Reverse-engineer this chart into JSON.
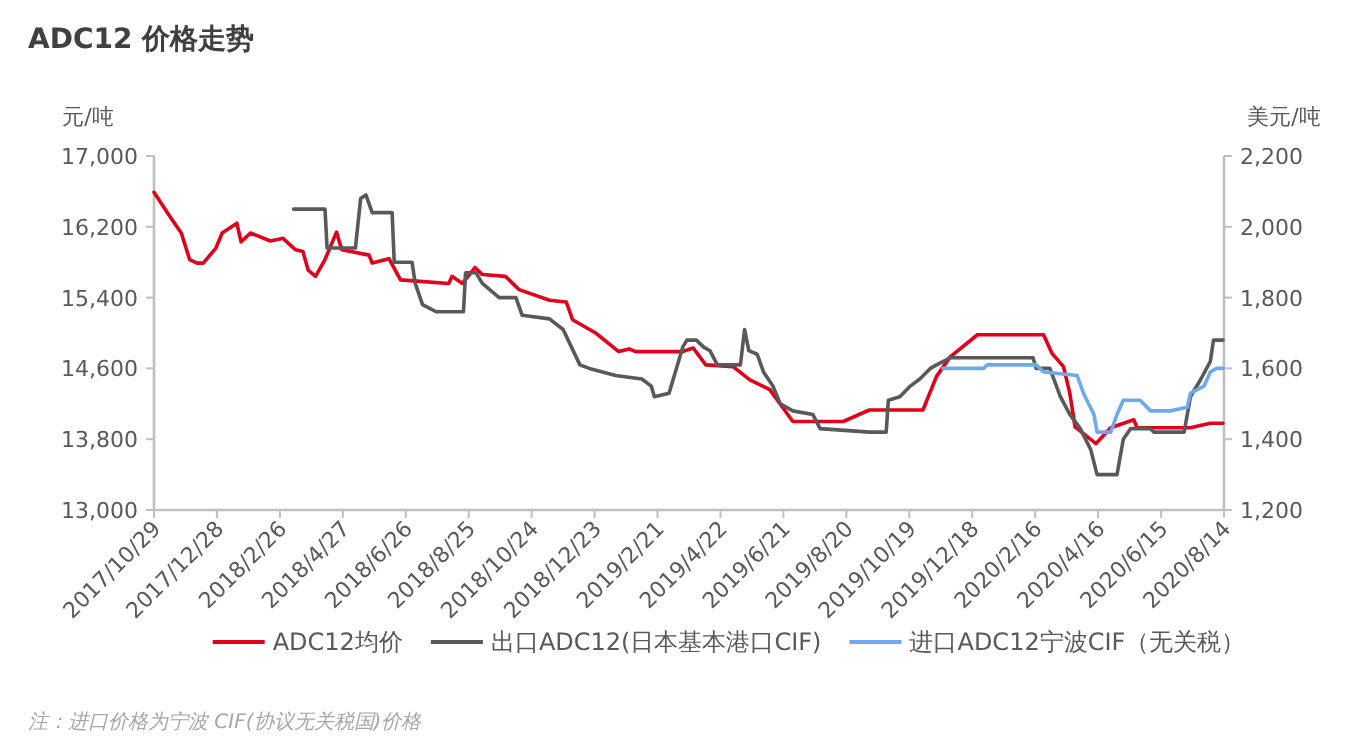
{
  "chart_data": {
    "type": "line",
    "title": "ADC12 价格走势",
    "ylabel": "元/吨",
    "y2label": "美元/吨",
    "xlim": [
      "2017-10-29",
      "2020-08-14"
    ],
    "xticks": [
      {
        "value": "2017-10-29",
        "label": "2017/10/29"
      },
      {
        "value": "2017-12-28",
        "label": "2017/12/28"
      },
      {
        "value": "2018-02-26",
        "label": "2018/2/26"
      },
      {
        "value": "2018-04-27",
        "label": "2018/4/27"
      },
      {
        "value": "2018-06-26",
        "label": "2018/6/26"
      },
      {
        "value": "2018-08-25",
        "label": "2018/8/25"
      },
      {
        "value": "2018-10-24",
        "label": "2018/10/24"
      },
      {
        "value": "2018-12-23",
        "label": "2018/12/23"
      },
      {
        "value": "2019-02-21",
        "label": "2019/2/21"
      },
      {
        "value": "2019-04-22",
        "label": "2019/4/22"
      },
      {
        "value": "2019-06-21",
        "label": "2019/6/21"
      },
      {
        "value": "2019-08-20",
        "label": "2019/8/20"
      },
      {
        "value": "2019-10-19",
        "label": "2019/10/19"
      },
      {
        "value": "2019-12-18",
        "label": "2019/12/18"
      },
      {
        "value": "2020-02-16",
        "label": "2020/2/16"
      },
      {
        "value": "2020-04-16",
        "label": "2020/4/16"
      },
      {
        "value": "2020-06-15",
        "label": "2020/6/15"
      },
      {
        "value": "2020-08-14",
        "label": "2020/8/14"
      }
    ],
    "ylim": [
      13000,
      17000
    ],
    "yticks": [
      {
        "value": 13000,
        "label": "13,000"
      },
      {
        "value": 13800,
        "label": "13,800"
      },
      {
        "value": 14600,
        "label": "14,600"
      },
      {
        "value": 15400,
        "label": "15,400"
      },
      {
        "value": 16200,
        "label": "16,200"
      },
      {
        "value": 17000,
        "label": "17,000"
      }
    ],
    "y2lim": [
      1200,
      2200
    ],
    "y2ticks": [
      {
        "value": 1200,
        "label": "1,200"
      },
      {
        "value": 1400,
        "label": "1,400"
      },
      {
        "value": 1600,
        "label": "1,600"
      },
      {
        "value": 1800,
        "label": "1,800"
      },
      {
        "value": 2000,
        "label": "2,000"
      },
      {
        "value": 2200,
        "label": "2,200"
      }
    ],
    "legend": "bottom",
    "grid": false,
    "marker": "none",
    "line_style": "solid",
    "series": [
      {
        "name": "ADC12均价",
        "color": "#e0001b",
        "x": [
          "2017-10-29",
          "2017-11-13",
          "2017-11-24",
          "2017-12-02",
          "2017-12-09",
          "2017-12-15",
          "2017-12-27",
          "2018-01-02",
          "2018-01-16",
          "2018-01-20",
          "2018-01-29",
          "2018-02-17",
          "2018-03-01",
          "2018-03-13",
          "2018-03-20",
          "2018-03-25",
          "2018-04-01",
          "2018-04-10",
          "2018-04-21",
          "2018-04-26",
          "2018-05-22",
          "2018-05-25",
          "2018-06-10",
          "2018-06-21",
          "2018-08-06",
          "2018-08-09",
          "2018-08-19",
          "2018-08-31",
          "2018-09-07",
          "2018-09-29",
          "2018-10-12",
          "2018-11-10",
          "2018-11-26",
          "2018-12-02",
          "2018-12-24",
          "2019-01-15",
          "2019-01-25",
          "2019-01-31",
          "2019-03-17",
          "2019-03-27",
          "2019-04-08",
          "2019-05-04",
          "2019-05-20",
          "2019-06-08",
          "2019-06-30",
          "2019-08-17",
          "2019-09-11",
          "2019-11-01",
          "2019-11-14",
          "2019-11-27",
          "2019-12-23",
          "2020-02-24",
          "2020-03-03",
          "2020-03-14",
          "2020-03-20",
          "2020-03-25",
          "2020-04-14",
          "2020-04-28",
          "2020-05-20",
          "2020-05-23",
          "2020-07-13",
          "2020-08-01",
          "2020-08-13"
        ],
        "values": [
          16590,
          16320,
          16130,
          15830,
          15790,
          15790,
          15960,
          16130,
          16240,
          16030,
          16130,
          16040,
          16070,
          15940,
          15920,
          15710,
          15640,
          15830,
          16140,
          15940,
          15880,
          15790,
          15840,
          15600,
          15560,
          15640,
          15560,
          15740,
          15660,
          15640,
          15490,
          15370,
          15350,
          15150,
          15000,
          14790,
          14820,
          14790,
          14790,
          14830,
          14640,
          14620,
          14470,
          14360,
          14000,
          14000,
          14130,
          14130,
          14510,
          14730,
          14980,
          14980,
          14770,
          14620,
          14320,
          13940,
          13750,
          13930,
          14020,
          13930,
          13930,
          13980,
          13980
        ]
      },
      {
        "name": "出口ADC12(日本基本港口CIF)",
        "color": "#595959",
        "axis": "y2",
        "x": [
          "2018-03-11",
          "2018-04-10",
          "2018-04-12",
          "2018-05-09",
          "2018-05-14",
          "2018-05-19",
          "2018-05-25",
          "2018-06-13",
          "2018-06-15",
          "2018-07-02",
          "2018-07-05",
          "2018-07-12",
          "2018-07-25",
          "2018-08-20",
          "2018-08-22",
          "2018-09-01",
          "2018-09-07",
          "2018-09-23",
          "2018-10-09",
          "2018-10-15",
          "2018-11-10",
          "2018-11-23",
          "2018-12-09",
          "2018-12-18",
          "2019-01-12",
          "2019-02-06",
          "2019-02-15",
          "2019-02-18",
          "2019-03-04",
          "2019-03-11",
          "2019-03-17",
          "2019-03-21",
          "2019-03-30",
          "2019-04-06",
          "2019-04-12",
          "2019-04-19",
          "2019-05-11",
          "2019-05-15",
          "2019-05-19",
          "2019-05-27",
          "2019-06-02",
          "2019-06-11",
          "2019-06-18",
          "2019-06-30",
          "2019-07-19",
          "2019-07-26",
          "2019-09-11",
          "2019-09-27",
          "2019-09-29",
          "2019-10-10",
          "2019-10-20",
          "2019-10-29",
          "2019-11-08",
          "2019-11-14",
          "2019-11-27",
          "2020-02-14",
          "2020-02-17",
          "2020-03-01",
          "2020-03-11",
          "2020-03-20",
          "2020-03-30",
          "2020-04-09",
          "2020-04-15",
          "2020-05-04",
          "2020-05-10",
          "2020-05-17",
          "2020-06-05",
          "2020-06-08",
          "2020-07-07",
          "2020-07-13",
          "2020-07-23",
          "2020-08-01",
          "2020-08-04",
          "2020-08-13"
        ],
        "values": [
          2050,
          2050,
          1940,
          1940,
          2080,
          2090,
          2040,
          2040,
          1900,
          1900,
          1840,
          1780,
          1760,
          1760,
          1870,
          1870,
          1840,
          1800,
          1800,
          1750,
          1740,
          1710,
          1610,
          1600,
          1580,
          1570,
          1550,
          1520,
          1530,
          1600,
          1660,
          1680,
          1680,
          1660,
          1650,
          1610,
          1610,
          1710,
          1650,
          1640,
          1590,
          1550,
          1500,
          1480,
          1470,
          1430,
          1420,
          1420,
          1510,
          1520,
          1550,
          1570,
          1600,
          1610,
          1630,
          1630,
          1600,
          1600,
          1520,
          1470,
          1430,
          1370,
          1300,
          1300,
          1400,
          1430,
          1430,
          1420,
          1420,
          1520,
          1570,
          1620,
          1680,
          1680
        ]
      },
      {
        "name": "进口ADC12宁波CIF（无关税）",
        "color": "#6fa8ee",
        "axis": "y2",
        "x": [
          "2019-11-20",
          "2019-12-29",
          "2020-01-01",
          "2020-02-17",
          "2020-02-24",
          "2020-03-27",
          "2020-04-02",
          "2020-04-12",
          "2020-04-15",
          "2020-04-28",
          "2020-05-04",
          "2020-05-10",
          "2020-05-26",
          "2020-06-05",
          "2020-06-24",
          "2020-07-10",
          "2020-07-13",
          "2020-07-26",
          "2020-08-01",
          "2020-08-07",
          "2020-08-13"
        ],
        "values": [
          1600,
          1600,
          1610,
          1610,
          1590,
          1580,
          1530,
          1470,
          1420,
          1420,
          1470,
          1510,
          1510,
          1480,
          1480,
          1490,
          1530,
          1550,
          1590,
          1600,
          1600
        ]
      }
    ],
    "annotations": [
      "注：进口价格为宁波 CIF(协议无关税国)价格"
    ]
  }
}
